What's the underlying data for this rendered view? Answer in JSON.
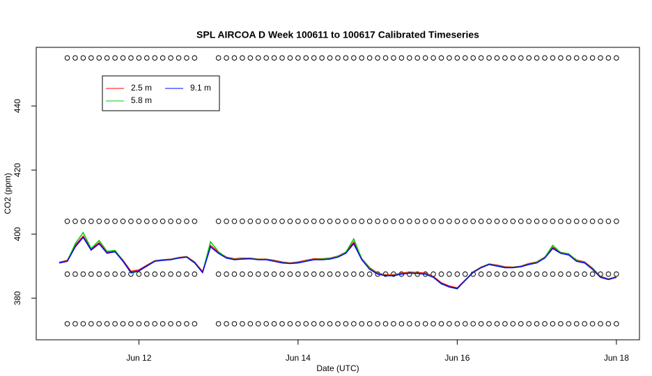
{
  "chart_data": {
    "type": "line",
    "title": "SPL AIRCOA D  Week 100611 to 100617  Calibrated Timeseries",
    "x_label": "Date (UTC)",
    "y_label": "CO2 (ppm)",
    "xlim": [
      -0.29,
      7.29
    ],
    "ylim": [
      367,
      458.3
    ],
    "xticks": [
      {
        "value": 1,
        "label": "Jun 12"
      },
      {
        "value": 3,
        "label": "Jun 14"
      },
      {
        "value": 5,
        "label": "Jun 16"
      },
      {
        "value": 7,
        "label": "Jun 18"
      }
    ],
    "yticks": [
      380,
      400,
      420,
      440
    ],
    "x": [
      0,
      0.1,
      0.2,
      0.3,
      0.4,
      0.5,
      0.6,
      0.7,
      0.8,
      0.9,
      1,
      1.1,
      1.2,
      1.3,
      1.4,
      1.5,
      1.6,
      1.7,
      1.8,
      1.9,
      2,
      2.1,
      2.2,
      2.3,
      2.4,
      2.5,
      2.6,
      2.7,
      2.8,
      2.9,
      3,
      3.1,
      3.2,
      3.3,
      3.4,
      3.5,
      3.6,
      3.7,
      3.8,
      3.9,
      4,
      4.1,
      4.2,
      4.3,
      4.4,
      4.5,
      4.6,
      4.7,
      4.8,
      4.9,
      5,
      5.1,
      5.2,
      5.3,
      5.4,
      5.5,
      5.6,
      5.7,
      5.8,
      5.9,
      6,
      6.1,
      6.2,
      6.3,
      6.4,
      6.5,
      6.6,
      6.7,
      6.8,
      6.9,
      7
    ],
    "series": [
      {
        "name": "2.5 m",
        "color": "#ff0000",
        "values": [
          391.2,
          391.8,
          396.5,
          399.4,
          395.3,
          397.3,
          394.3,
          394.8,
          391.9,
          388.4,
          388.8,
          390.3,
          391.7,
          392,
          392.2,
          392.7,
          393,
          391.3,
          388.3,
          396.5,
          394.3,
          392.8,
          392.3,
          392.5,
          392.5,
          392.2,
          392.2,
          391.8,
          391.3,
          391,
          391.3,
          391.8,
          392.3,
          392.3,
          392.5,
          393.1,
          394.4,
          397.5,
          392.4,
          389.5,
          387.8,
          387.3,
          387.3,
          387.8,
          388.1,
          388,
          387.8,
          386.8,
          384.8,
          383.8,
          383.2,
          385.7,
          388.2,
          389.7,
          390.7,
          390.3,
          389.8,
          389.7,
          390,
          390.8,
          391.3,
          392.8,
          395.9,
          394.3,
          393.8,
          391.9,
          391.3,
          389.4,
          386.8,
          386,
          386.7
        ]
      },
      {
        "name": "5.8 m",
        "color": "#00cc00",
        "values": [
          391,
          391.6,
          397,
          400.5,
          395.5,
          398,
          394.6,
          394.9,
          391.7,
          387.8,
          388.4,
          390.1,
          391.6,
          391.9,
          392.1,
          392.6,
          392.9,
          391.1,
          388,
          397.6,
          394.5,
          392.6,
          392.1,
          392.3,
          392.4,
          392.1,
          392.1,
          391.6,
          391.1,
          390.9,
          391.1,
          391.6,
          392.1,
          392.2,
          392.4,
          393,
          394.3,
          398.5,
          392.3,
          389.3,
          387.6,
          387.1,
          387.1,
          387.6,
          387.9,
          387.8,
          387.6,
          386.6,
          384.5,
          383.5,
          382.9,
          385.6,
          388.1,
          389.6,
          390.6,
          390.1,
          389.6,
          389.6,
          389.9,
          390.6,
          391.2,
          392.7,
          396.5,
          394.2,
          393.9,
          391.7,
          391.1,
          389.2,
          386.6,
          385.9,
          386.6
        ]
      },
      {
        "name": "9.1 m",
        "color": "#0000ff",
        "values": [
          391,
          391.5,
          396,
          399,
          395,
          397,
          394,
          394.5,
          391.5,
          388,
          388.5,
          390,
          391.5,
          391.8,
          392,
          392.5,
          392.8,
          391,
          388,
          396,
          394,
          392.5,
          392,
          392.2,
          392.3,
          392,
          392,
          391.5,
          391,
          390.8,
          391,
          391.5,
          392,
          392,
          392.2,
          392.8,
          394,
          397,
          392,
          389,
          387.5,
          387,
          387,
          387.5,
          387.8,
          387.7,
          387.5,
          386.5,
          384.5,
          383.5,
          383,
          385.5,
          388,
          389.5,
          390.5,
          390,
          389.5,
          389.5,
          389.8,
          390.5,
          391,
          392.5,
          395.5,
          394,
          393.5,
          391.5,
          391,
          389,
          386.5,
          385.8,
          386.5
        ]
      }
    ],
    "reference_points": {
      "levels": [
        455,
        404,
        387.5,
        372
      ],
      "x": [
        0.1,
        0.2,
        0.3,
        0.4,
        0.5,
        0.6,
        0.7,
        0.8,
        0.9,
        1,
        1.1,
        1.2,
        1.3,
        1.4,
        1.5,
        1.6,
        1.7,
        2,
        2.1,
        2.2,
        2.3,
        2.4,
        2.5,
        2.6,
        2.7,
        2.8,
        2.9,
        3,
        3.1,
        3.2,
        3.3,
        3.4,
        3.5,
        3.6,
        3.7,
        3.8,
        3.9,
        4,
        4.1,
        4.2,
        4.3,
        4.4,
        4.5,
        4.6,
        4.7,
        4.8,
        4.9,
        5,
        5.1,
        5.2,
        5.3,
        5.4,
        5.5,
        5.6,
        5.7,
        5.8,
        5.9,
        6,
        6.1,
        6.2,
        6.3,
        6.4,
        6.5,
        6.6,
        6.7,
        6.8,
        6.9,
        7
      ]
    }
  }
}
